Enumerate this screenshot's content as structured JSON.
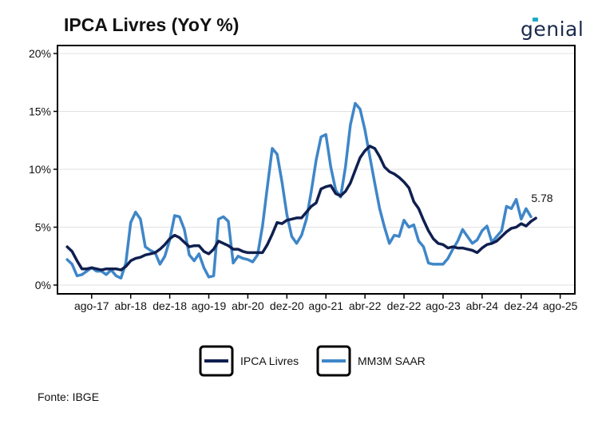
{
  "title": "IPCA Livres (YoY %)",
  "logo_text": "genial",
  "source": "Fonte: IBGE",
  "chart_data": {
    "type": "line",
    "title": "IPCA Livres (YoY %)",
    "xlabel": "",
    "ylabel": "",
    "ylim": [
      0,
      20
    ],
    "xlim": [
      "2017-01",
      "2025-11"
    ],
    "yticks": [
      0,
      5,
      10,
      15,
      20
    ],
    "ytick_labels": [
      "0%",
      "5%",
      "10%",
      "15%",
      "20%"
    ],
    "xticks": [
      "2017-08",
      "2018-04",
      "2018-12",
      "2019-08",
      "2020-04",
      "2020-12",
      "2021-08",
      "2022-04",
      "2022-12",
      "2023-08",
      "2024-04",
      "2024-12",
      "2025-08"
    ],
    "xtick_labels": [
      "ago-17",
      "abr-18",
      "dez-18",
      "ago-19",
      "abr-20",
      "dez-20",
      "ago-21",
      "abr-22",
      "dez-22",
      "ago-23",
      "abr-24",
      "dez-24",
      "ago-25"
    ],
    "grid": "horizontal",
    "legend_position": "bottom",
    "x_start": "2017-03",
    "annotation": {
      "text": "5.78",
      "x": "2025-05",
      "y": 5.78
    },
    "series": [
      {
        "name": "IPCA Livres",
        "color": "#0f1f4f",
        "values": [
          3.3,
          2.9,
          2.1,
          1.4,
          1.4,
          1.5,
          1.4,
          1.3,
          1.4,
          1.4,
          1.4,
          1.3,
          1.6,
          2.1,
          2.3,
          2.4,
          2.6,
          2.7,
          2.8,
          3.1,
          3.5,
          4.0,
          4.3,
          4.1,
          3.7,
          3.3,
          3.4,
          3.4,
          2.9,
          2.7,
          3.1,
          3.8,
          3.6,
          3.4,
          3.1,
          3.1,
          2.9,
          2.8,
          2.8,
          2.8,
          2.8,
          3.5,
          4.4,
          5.4,
          5.3,
          5.6,
          5.7,
          5.8,
          5.8,
          6.3,
          6.8,
          7.1,
          8.3,
          8.5,
          8.6,
          7.9,
          7.7,
          8.1,
          8.8,
          9.9,
          11.0,
          11.6,
          12.0,
          11.8,
          11.1,
          10.2,
          9.8,
          9.6,
          9.3,
          8.9,
          8.4,
          7.2,
          6.6,
          5.6,
          4.7,
          4.0,
          3.6,
          3.5,
          3.2,
          3.3,
          3.2,
          3.2,
          3.1,
          3.0,
          2.8,
          3.2,
          3.5,
          3.6,
          3.8,
          4.2,
          4.6,
          4.9,
          5.0,
          5.3,
          5.1,
          5.5,
          5.78
        ]
      },
      {
        "name": "MM3M SAAR",
        "color": "#3f86c8",
        "values": [
          2.2,
          1.8,
          0.8,
          0.9,
          1.2,
          1.5,
          1.2,
          1.2,
          0.9,
          1.3,
          0.8,
          0.6,
          1.9,
          5.4,
          6.3,
          5.7,
          3.3,
          3.0,
          2.8,
          1.8,
          2.5,
          3.9,
          6.0,
          5.9,
          4.8,
          2.6,
          2.1,
          2.7,
          1.5,
          0.7,
          0.8,
          5.7,
          5.9,
          5.5,
          1.9,
          2.5,
          2.3,
          2.2,
          2.0,
          2.6,
          5.1,
          8.5,
          11.8,
          11.3,
          8.9,
          6.1,
          4.2,
          3.6,
          4.3,
          5.7,
          8.1,
          10.8,
          12.8,
          13.0,
          10.2,
          8.2,
          7.6,
          10.2,
          13.8,
          15.7,
          15.2,
          13.4,
          11.1,
          8.8,
          6.6,
          5.0,
          3.6,
          4.3,
          4.2,
          5.6,
          5.0,
          5.2,
          3.8,
          3.3,
          1.9,
          1.8,
          1.8,
          1.8,
          2.3,
          3.1,
          3.8,
          4.8,
          4.2,
          3.6,
          3.9,
          4.7,
          5.1,
          3.7,
          4.2,
          4.7,
          6.8,
          6.6,
          7.4,
          5.7,
          6.6,
          5.9
        ]
      }
    ]
  }
}
